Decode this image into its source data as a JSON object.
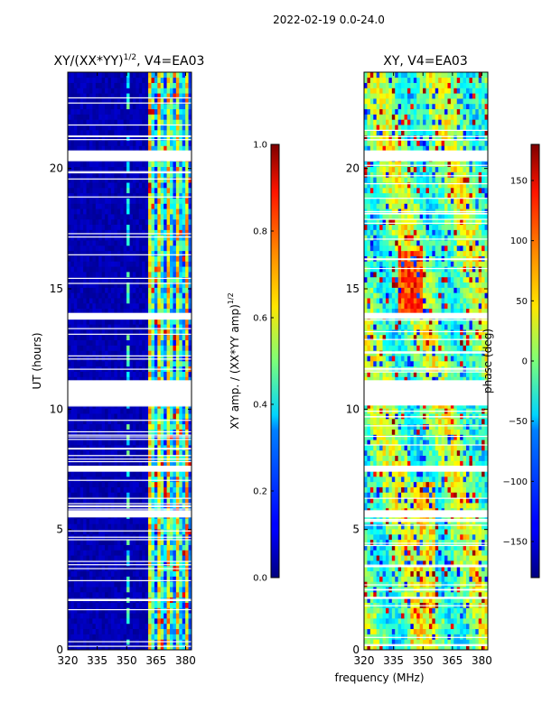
{
  "suptitle": "2022-02-19 0.0-24.0",
  "xlabel_shared": "frequency (MHz)",
  "chart_data": [
    {
      "type": "heatmap",
      "title": "XY/(XX*YY)",
      "title_sup": "1/2",
      "title_suffix": ", V4=EA03",
      "ylabel": "UT (hours)",
      "xlim": [
        320,
        383
      ],
      "ylim": [
        0,
        24
      ],
      "xticks": [
        "320",
        "335",
        "350",
        "365",
        "380"
      ],
      "xtick_values": [
        320,
        335,
        350,
        365,
        380
      ],
      "yticks": [
        "0",
        "5",
        "10",
        "15",
        "20"
      ],
      "ytick_values": [
        0,
        5,
        10,
        15,
        20
      ],
      "colorbar": {
        "label": "XY amp. / (XX*YY amp)",
        "label_sup": "1/2",
        "range": [
          0.0,
          1.0
        ],
        "ticks": [
          "0.0",
          "0.2",
          "0.4",
          "0.6",
          "0.8",
          "1.0"
        ],
        "tick_values": [
          0.0,
          0.2,
          0.4,
          0.6,
          0.8,
          1.0
        ]
      },
      "data_gaps_hours": [
        [
          10.15,
          11.2
        ],
        [
          20.3,
          20.75
        ],
        [
          13.75,
          14.0
        ],
        [
          7.4,
          7.65
        ],
        [
          5.5,
          5.8
        ]
      ]
    },
    {
      "type": "heatmap",
      "title": "XY, V4=EA03",
      "xlim": [
        320,
        383
      ],
      "ylim": [
        0,
        24
      ],
      "xticks": [
        "320",
        "335",
        "350",
        "365",
        "380"
      ],
      "xtick_values": [
        320,
        335,
        350,
        365,
        380
      ],
      "yticks": [
        "0",
        "5",
        "10",
        "15",
        "20"
      ],
      "ytick_values": [
        0,
        5,
        10,
        15,
        20
      ],
      "colorbar": {
        "label": "phase (deg)",
        "range": [
          -180,
          180
        ],
        "ticks": [
          "−150",
          "−100",
          "−50",
          "0",
          "50",
          "100",
          "150"
        ],
        "tick_values": [
          -150,
          -100,
          -50,
          0,
          50,
          100,
          150
        ]
      },
      "data_gaps_hours": [
        [
          10.15,
          11.2
        ],
        [
          20.3,
          20.75
        ],
        [
          13.75,
          14.0
        ],
        [
          7.4,
          7.65
        ],
        [
          5.5,
          5.8
        ]
      ]
    }
  ]
}
